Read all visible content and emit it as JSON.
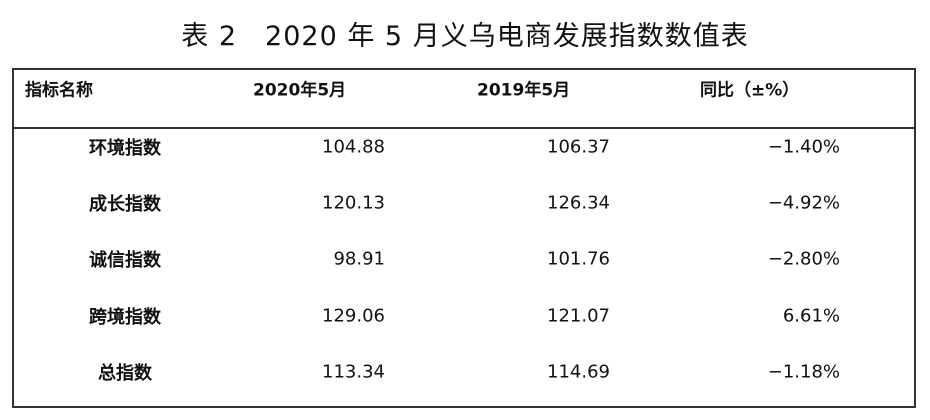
{
  "title": "表 2　2020 年 5 月义乌电商发展指数数值表",
  "table": {
    "header": [
      "指标名称",
      "2020年5月",
      "2019年5月",
      "同比（±%）"
    ],
    "rows": [
      [
        "环境指数",
        "104.88",
        "106.37",
        "−1.40%"
      ],
      [
        "成长指数",
        "120.13",
        "126.34",
        "−4.92%"
      ],
      [
        "诚信指数",
        "98.91",
        "101.76",
        "−2.80%"
      ],
      [
        "跨境指数",
        "129.06",
        "121.07",
        "6.61%"
      ],
      [
        "总指数",
        "113.34",
        "114.69",
        "−1.18%"
      ]
    ]
  }
}
